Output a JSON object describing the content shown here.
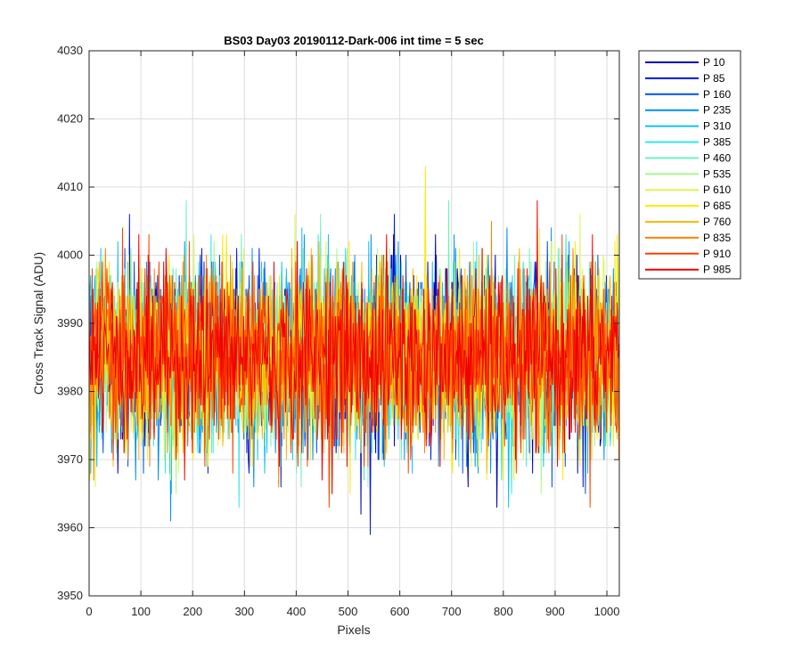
{
  "chart_data": {
    "type": "line",
    "title": "BS03 Day03 20190112-Dark-006 int time = 5 sec",
    "xlabel": "Pixels",
    "ylabel": "Cross Track Signal (ADU)",
    "xlim": [
      0,
      1024
    ],
    "ylim": [
      3950,
      4030
    ],
    "xticks": [
      "0",
      "100",
      "200",
      "300",
      "400",
      "500",
      "600",
      "700",
      "800",
      "900",
      "1000"
    ],
    "yticks": [
      "3950",
      "3960",
      "3970",
      "3980",
      "3990",
      "4000",
      "4010",
      "4020",
      "4030"
    ],
    "grid": true,
    "legend_position": "outside-top-right",
    "noise": {
      "mean": 3985,
      "std": 6.5
    },
    "series": [
      {
        "name": "P 10",
        "color": "#0000b0"
      },
      {
        "name": "P 85",
        "color": "#0018d8"
      },
      {
        "name": "P 160",
        "color": "#0050f0"
      },
      {
        "name": "P 235",
        "color": "#0090f0"
      },
      {
        "name": "P 310",
        "color": "#10c0f8"
      },
      {
        "name": "P 385",
        "color": "#30e8e8"
      },
      {
        "name": "P 460",
        "color": "#70f0c0"
      },
      {
        "name": "P 535",
        "color": "#a8f890"
      },
      {
        "name": "P 610",
        "color": "#d8f850"
      },
      {
        "name": "P 685",
        "color": "#ffe800"
      },
      {
        "name": "P 760",
        "color": "#ffb800"
      },
      {
        "name": "P 835",
        "color": "#ff8000"
      },
      {
        "name": "P 910",
        "color": "#ff4000"
      },
      {
        "name": "P 985",
        "color": "#f00000"
      }
    ]
  }
}
